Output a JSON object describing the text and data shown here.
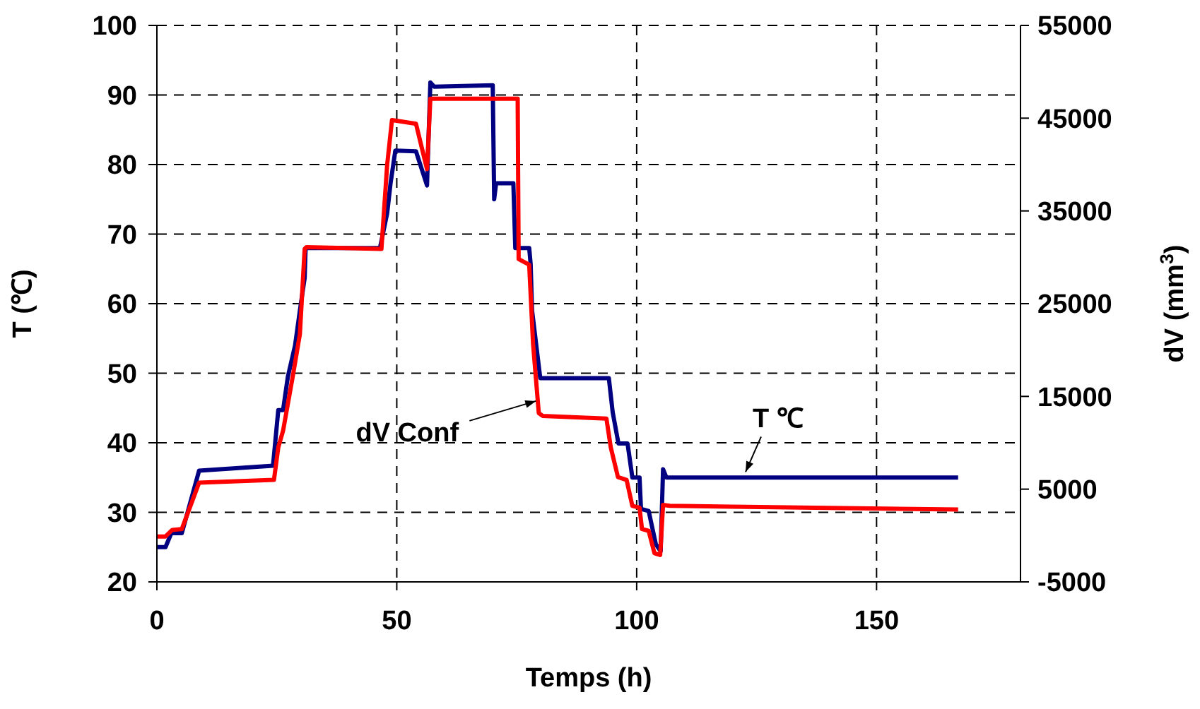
{
  "chart_data": {
    "type": "line",
    "xlabel": "Temps (h)",
    "ylabel": "T (℃)",
    "y2label": "dV (mm$^{3}$)",
    "xlim": [
      0,
      180
    ],
    "xticks": [
      0,
      50,
      100,
      150
    ],
    "ylim": [
      20,
      100
    ],
    "yticks": [
      20,
      30,
      40,
      50,
      60,
      70,
      80,
      90,
      100
    ],
    "y2lim": [
      -5000,
      55000
    ],
    "y2ticks": [
      -5000,
      5000,
      15000,
      25000,
      35000,
      45000,
      55000
    ],
    "grid": true,
    "line_style": "solid",
    "marker": "none",
    "series": [
      {
        "color": "#000080",
        "x": [
          0,
          1.8,
          3,
          5.2,
          8.8,
          24.2,
          25.3,
          26.3,
          27.3,
          28.8,
          29.8,
          30.8,
          31,
          46.5,
          48,
          48.7,
          49.7,
          54,
          56.3,
          57,
          57.8,
          70,
          70.3,
          70.7,
          74.3,
          74.7,
          77.6,
          77.9,
          78.2,
          79.9,
          94.2,
          95,
          96.2,
          98.1,
          99.1,
          100.6,
          100.9,
          102.5,
          104,
          105,
          105.5,
          106.2,
          167
        ],
        "values": [
          25,
          25,
          27,
          27,
          36,
          36.7,
          44.7,
          44.7,
          49.5,
          54,
          59,
          63.7,
          68,
          68,
          73,
          77.3,
          82,
          81.9,
          77,
          91.8,
          91.2,
          91.4,
          75,
          77.3,
          77.3,
          68,
          68,
          65.7,
          59,
          49.3,
          49.3,
          44.4,
          39.9,
          39.9,
          35,
          35,
          30.5,
          30.2,
          25.4,
          24.4,
          36.2,
          35,
          35
        ]
      },
      {
        "color": "#ff0000",
        "axis": "y2",
        "x": [
          0,
          1.8,
          3.2,
          5.2,
          8.8,
          24.4,
          25.3,
          26.3,
          28.3,
          29.8,
          30.8,
          31.2,
          46.8,
          48,
          49,
          54,
          56.3,
          57,
          75.2,
          75.4,
          77.6,
          78.4,
          79.6,
          80.4,
          93.7,
          94.6,
          96.1,
          97.9,
          99.1,
          100.6,
          101.1,
          102.5,
          103.7,
          104.9,
          105.5,
          106.9,
          167
        ],
        "values": [
          -100,
          -100,
          600,
          700,
          5700,
          6000,
          9500,
          11300,
          17100,
          21700,
          30900,
          31100,
          30900,
          40000,
          44800,
          44400,
          39500,
          47100,
          47100,
          29800,
          29200,
          20700,
          13200,
          12900,
          12600,
          9500,
          6300,
          6000,
          3200,
          3000,
          700,
          500,
          -1900,
          -2100,
          3300,
          3200,
          2800
        ]
      }
    ],
    "annotations": [
      {
        "text": "dV Conf",
        "x": 79,
        "y": 46
      },
      {
        "text": "T ℃",
        "x": 122.7,
        "y": 35.8
      }
    ]
  }
}
